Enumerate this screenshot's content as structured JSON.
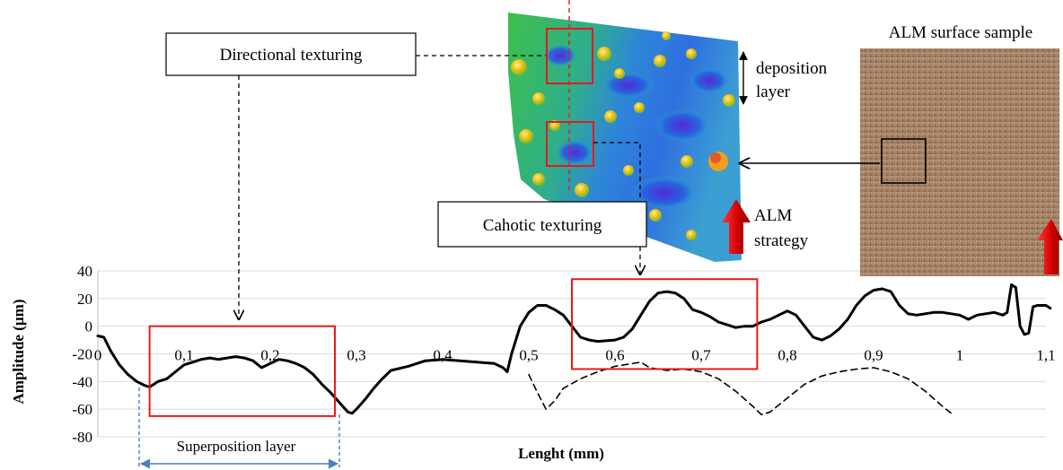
{
  "callouts": {
    "directional": "Directional texturing",
    "chaotic": "Cahotic texturing",
    "superposition": "Superposition layer"
  },
  "sample": {
    "title": "ALM surface sample"
  },
  "deposition": {
    "line1": "deposition",
    "line2": "layer"
  },
  "strategy": {
    "line1": "ALM",
    "line2": "strategy"
  },
  "colors": {
    "highlight_box": "#e8181c",
    "profile_line": "#000000",
    "grid": "#d9d9d9",
    "arrow_red": "#e31a1c",
    "annotation_blue": "#4a7fc1",
    "surface_high": "#f2c21b",
    "surface_mid": "#3dbb3a",
    "surface_low": "#1f4fd6",
    "sample_base": "#9a7a5e"
  },
  "chart_data": {
    "type": "line",
    "title": "",
    "xlabel": "Lenght (mm)",
    "ylabel": "Amplitude (µm)",
    "xlim": [
      0,
      1.1
    ],
    "ylim": [
      -80,
      40
    ],
    "grid": true,
    "x_ticks": [
      "0",
      "0,1",
      "0,2",
      "0,3",
      "0,4",
      "0,5",
      "0,6",
      "0,7",
      "0,8",
      "0,9",
      "1",
      "1,1"
    ],
    "y_ticks": [
      "40",
      "20",
      "0",
      "-20",
      "-40",
      "-60",
      "-80"
    ],
    "series": [
      {
        "style": "solid",
        "points": [
          [
            0,
            -7
          ],
          [
            0.007,
            -8
          ],
          [
            0.015,
            -18
          ],
          [
            0.025,
            -28
          ],
          [
            0.035,
            -35
          ],
          [
            0.045,
            -40
          ],
          [
            0.055,
            -43
          ],
          [
            0.06,
            -44
          ],
          [
            0.07,
            -40
          ],
          [
            0.08,
            -38
          ],
          [
            0.09,
            -33
          ],
          [
            0.1,
            -28
          ],
          [
            0.11,
            -26
          ],
          [
            0.12,
            -24
          ],
          [
            0.13,
            -23
          ],
          [
            0.14,
            -24
          ],
          [
            0.15,
            -23
          ],
          [
            0.16,
            -22
          ],
          [
            0.17,
            -23
          ],
          [
            0.18,
            -25
          ],
          [
            0.19,
            -30
          ],
          [
            0.2,
            -27
          ],
          [
            0.21,
            -24
          ],
          [
            0.22,
            -25
          ],
          [
            0.23,
            -27
          ],
          [
            0.24,
            -30
          ],
          [
            0.25,
            -35
          ],
          [
            0.26,
            -42
          ],
          [
            0.27,
            -48
          ],
          [
            0.28,
            -55
          ],
          [
            0.29,
            -62
          ],
          [
            0.295,
            -63
          ],
          [
            0.3,
            -60
          ],
          [
            0.31,
            -53
          ],
          [
            0.32,
            -45
          ],
          [
            0.33,
            -38
          ],
          [
            0.34,
            -32
          ],
          [
            0.36,
            -29
          ],
          [
            0.38,
            -25
          ],
          [
            0.4,
            -24
          ],
          [
            0.42,
            -25
          ],
          [
            0.44,
            -26
          ],
          [
            0.46,
            -27
          ],
          [
            0.47,
            -30
          ],
          [
            0.475,
            -33
          ],
          [
            0.48,
            -20
          ],
          [
            0.485,
            -10
          ],
          [
            0.49,
            0
          ],
          [
            0.5,
            10
          ],
          [
            0.51,
            15
          ],
          [
            0.52,
            15
          ],
          [
            0.53,
            12
          ],
          [
            0.54,
            8
          ],
          [
            0.55,
            0
          ],
          [
            0.56,
            -8
          ],
          [
            0.57,
            -10
          ],
          [
            0.58,
            -11
          ],
          [
            0.6,
            -10
          ],
          [
            0.61,
            -8
          ],
          [
            0.62,
            -2
          ],
          [
            0.63,
            8
          ],
          [
            0.64,
            18
          ],
          [
            0.65,
            24
          ],
          [
            0.66,
            25
          ],
          [
            0.67,
            24
          ],
          [
            0.68,
            20
          ],
          [
            0.69,
            12
          ],
          [
            0.7,
            10
          ],
          [
            0.71,
            7
          ],
          [
            0.72,
            3
          ],
          [
            0.73,
            1
          ],
          [
            0.74,
            -1
          ],
          [
            0.75,
            0
          ],
          [
            0.76,
            0
          ],
          [
            0.77,
            3
          ],
          [
            0.78,
            5
          ],
          [
            0.79,
            8
          ],
          [
            0.8,
            11
          ],
          [
            0.81,
            8
          ],
          [
            0.82,
            0
          ],
          [
            0.83,
            -8
          ],
          [
            0.84,
            -10
          ],
          [
            0.85,
            -7
          ],
          [
            0.86,
            -2
          ],
          [
            0.87,
            5
          ],
          [
            0.88,
            15
          ],
          [
            0.89,
            22
          ],
          [
            0.9,
            26
          ],
          [
            0.91,
            27
          ],
          [
            0.92,
            25
          ],
          [
            0.93,
            15
          ],
          [
            0.94,
            9
          ],
          [
            0.95,
            8
          ],
          [
            0.96,
            9
          ],
          [
            0.97,
            10
          ],
          [
            0.98,
            10
          ],
          [
            0.99,
            9
          ],
          [
            1.0,
            8
          ],
          [
            1.01,
            5
          ],
          [
            1.02,
            8
          ],
          [
            1.03,
            9
          ],
          [
            1.04,
            10
          ],
          [
            1.05,
            8
          ],
          [
            1.055,
            10
          ],
          [
            1.06,
            30
          ],
          [
            1.065,
            28
          ],
          [
            1.07,
            0
          ],
          [
            1.075,
            -6
          ],
          [
            1.08,
            -5
          ],
          [
            1.085,
            14
          ],
          [
            1.09,
            15
          ],
          [
            1.1,
            15
          ],
          [
            1.105,
            13
          ]
        ]
      },
      {
        "style": "dashed",
        "points": [
          [
            0.5,
            -35
          ],
          [
            0.51,
            -48
          ],
          [
            0.52,
            -60
          ],
          [
            0.53,
            -54
          ],
          [
            0.54,
            -45
          ],
          [
            0.56,
            -38
          ],
          [
            0.58,
            -33
          ],
          [
            0.6,
            -29
          ],
          [
            0.62,
            -27
          ],
          [
            0.63,
            -26
          ],
          [
            0.64,
            -30
          ],
          [
            0.66,
            -32
          ],
          [
            0.68,
            -31
          ],
          [
            0.7,
            -33
          ],
          [
            0.72,
            -38
          ],
          [
            0.74,
            -47
          ],
          [
            0.76,
            -58
          ],
          [
            0.77,
            -64
          ],
          [
            0.78,
            -62
          ],
          [
            0.8,
            -52
          ],
          [
            0.82,
            -42
          ],
          [
            0.84,
            -36
          ],
          [
            0.86,
            -33
          ],
          [
            0.88,
            -31
          ],
          [
            0.9,
            -30
          ],
          [
            0.92,
            -33
          ],
          [
            0.94,
            -38
          ],
          [
            0.96,
            -47
          ],
          [
            0.98,
            -58
          ],
          [
            0.99,
            -63
          ]
        ]
      }
    ],
    "highlight_boxes": [
      {
        "x": [
          0.06,
          0.275
        ],
        "y": [
          -65,
          0
        ]
      },
      {
        "x": [
          0.55,
          0.765
        ],
        "y": [
          -31,
          34
        ]
      }
    ]
  }
}
